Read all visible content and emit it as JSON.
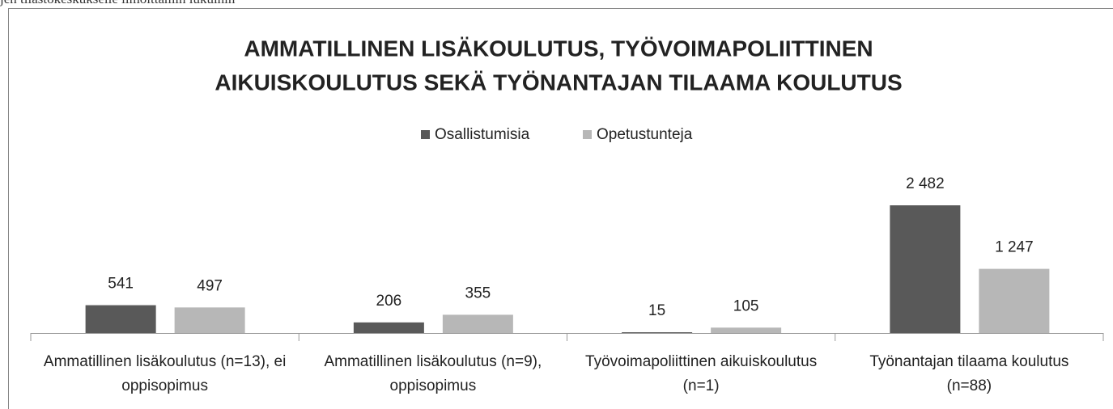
{
  "caption": "jen tilastokeskukselle ilmoittamin lukuihin",
  "chart_data": {
    "type": "bar",
    "title": [
      "AMMATILLINEN LISÄKOULUTUS, TYÖVOIMAPOLIITTINEN",
      "AIKUISKOULUTUS SEKÄ TYÖNANTAJAN TILAAMA KOULUTUS"
    ],
    "categories": [
      "Ammatillinen lisäkoulutus (n=13), ei oppisopimus",
      "Ammatillinen lisäkoulutus (n=9), oppisopimus",
      "Työvoimapoliittinen aikuiskoulutus (n=1)",
      "Työnantajan tilaama koulutus (n=88)"
    ],
    "series": [
      {
        "name": "Osallistumisia",
        "color": "#595959",
        "values": [
          541,
          206,
          15,
          2482
        ],
        "value_labels": [
          "541",
          "206",
          "15",
          "2 482"
        ]
      },
      {
        "name": "Opetustunteja",
        "color": "#b7b7b7",
        "values": [
          497,
          355,
          105,
          1247
        ],
        "value_labels": [
          "497",
          "355",
          "105",
          "1 247"
        ]
      }
    ],
    "legend": "top"
  }
}
